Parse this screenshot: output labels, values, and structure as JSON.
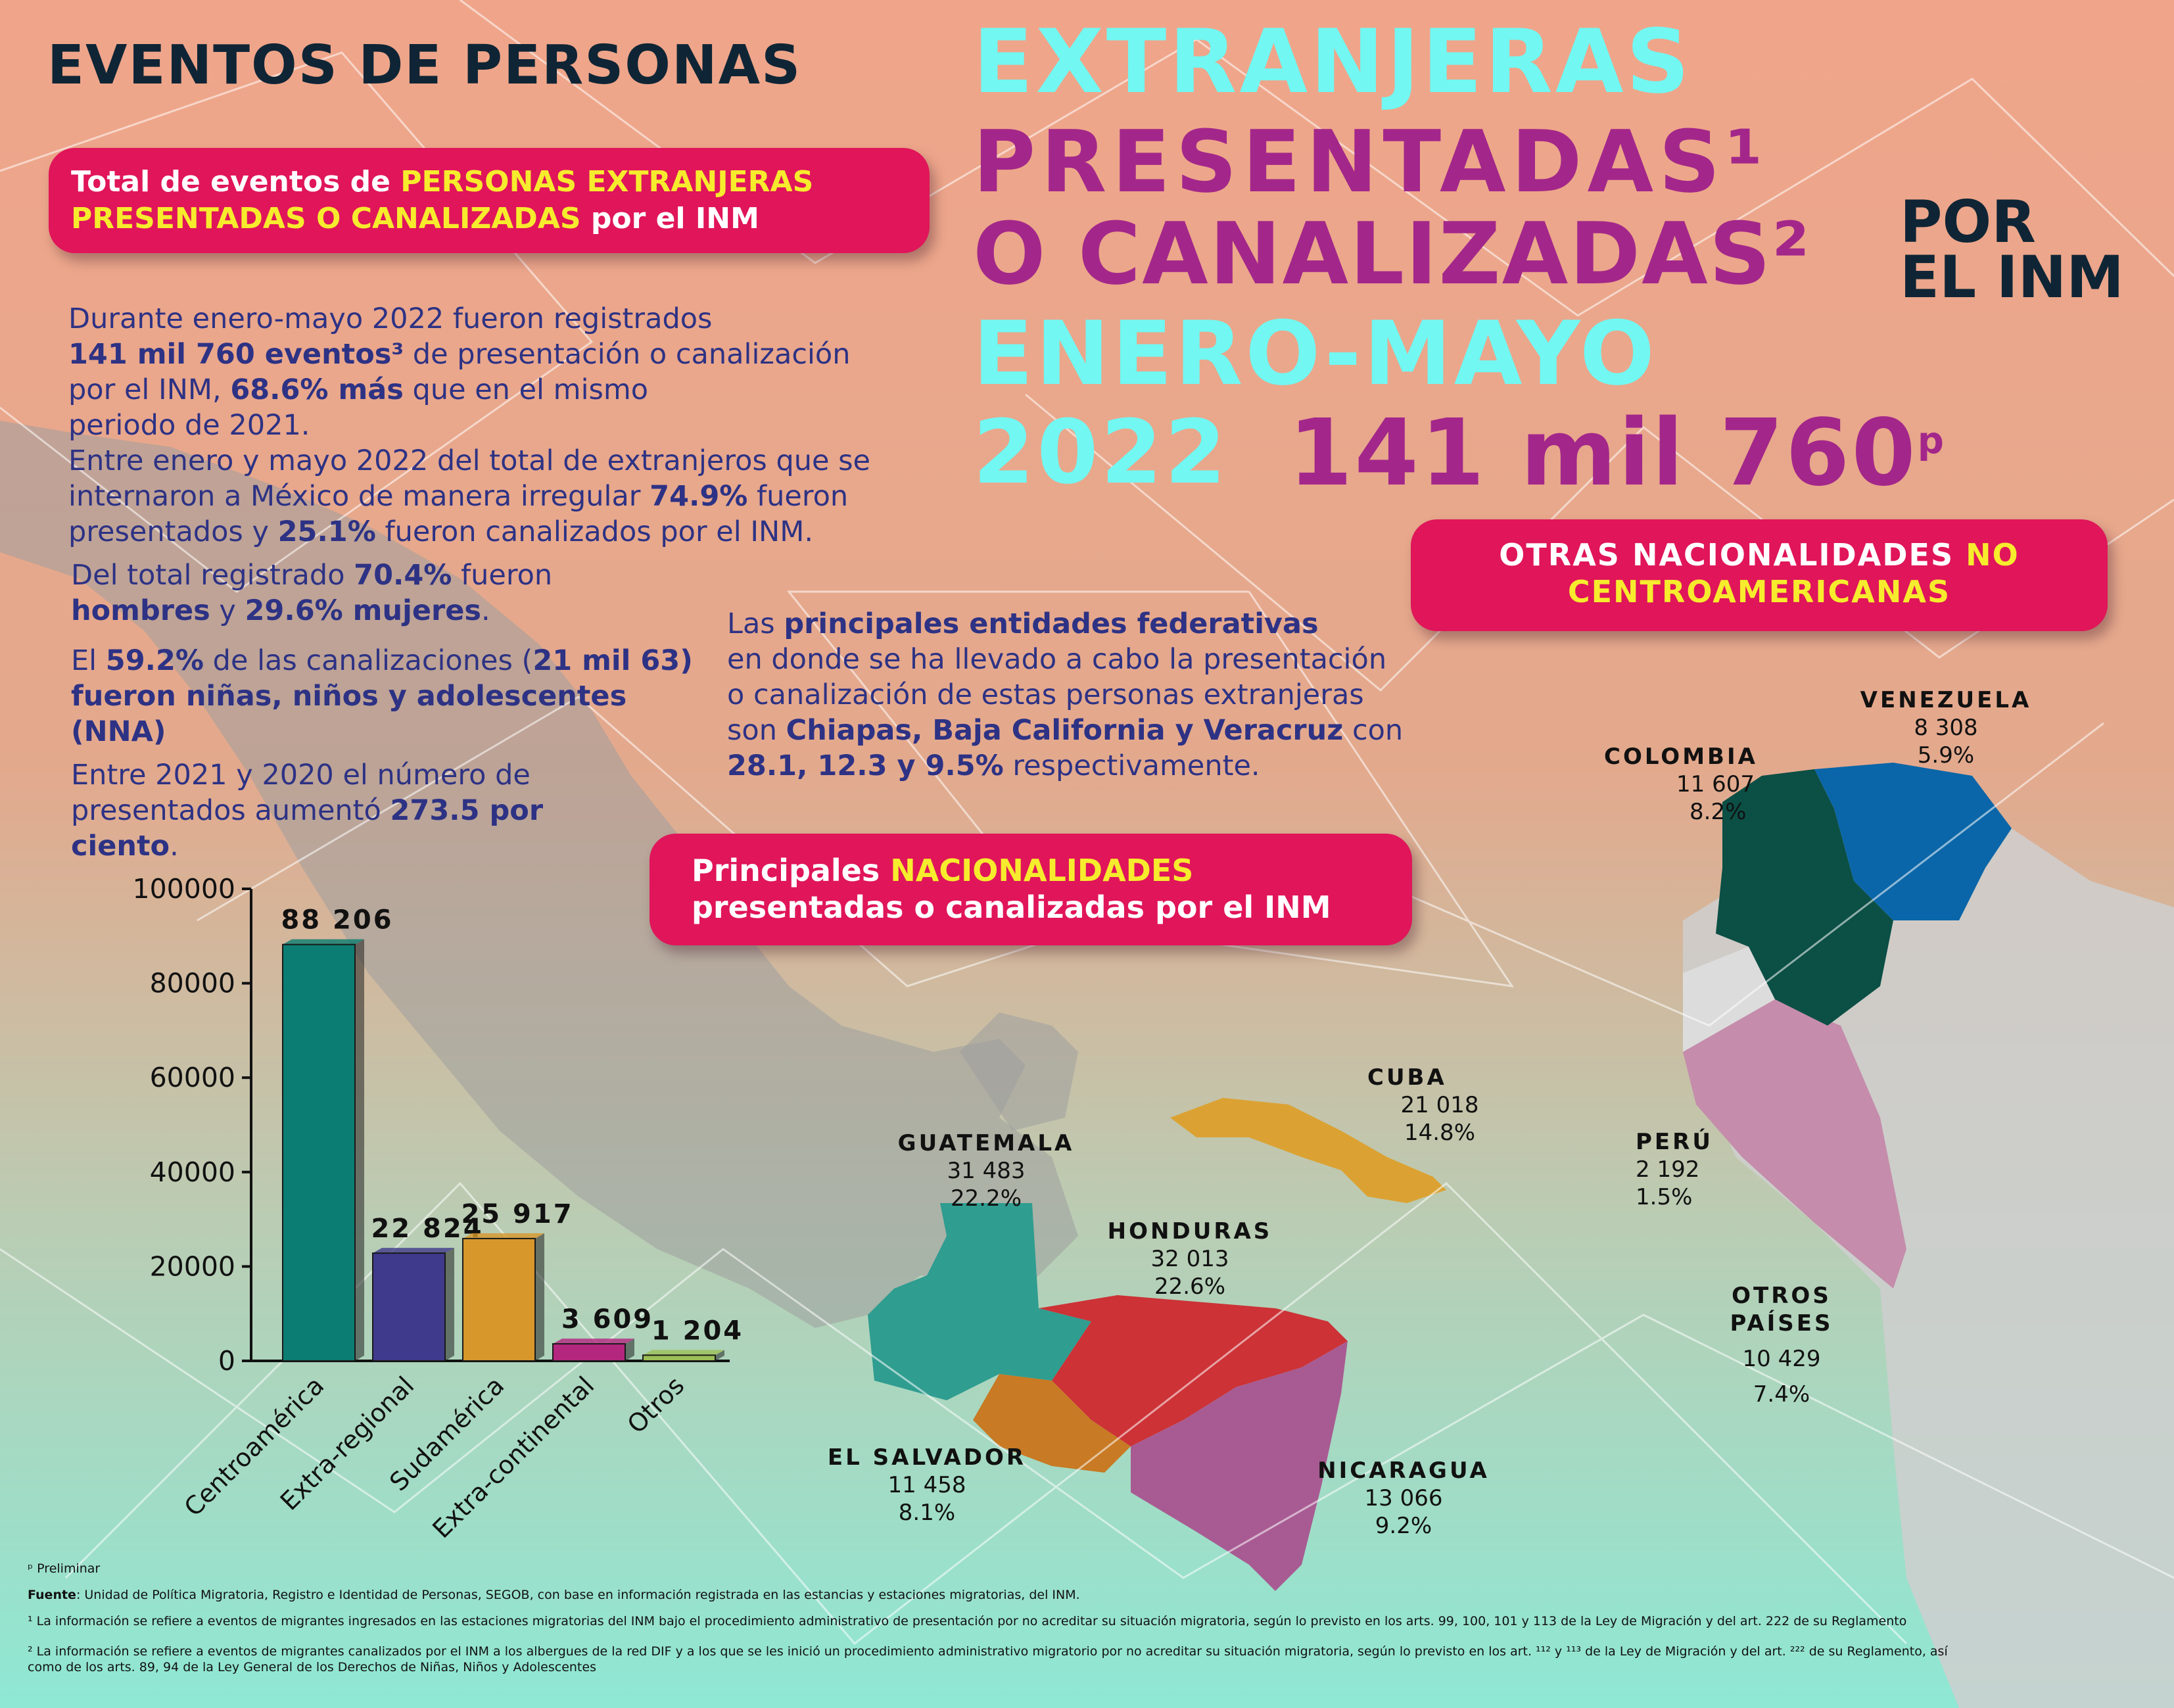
{
  "title": {
    "line1": "EVENTOS DE PERSONAS",
    "line2": "EXTRANJERAS",
    "line3": "PRESENTADAS¹",
    "line4": "O CANALIZADAS²",
    "por": "POR",
    "el_inm": "EL INM",
    "line5": "ENERO-MAYO",
    "line6": "2022",
    "total": "141 mil 760",
    "total_sup": "p"
  },
  "pill_total": {
    "part1": "Total de eventos de ",
    "part2": "PERSONAS EXTRANJERAS",
    "part3": "PRESENTADAS O CANALIZADAS",
    "part4": " por el INM"
  },
  "pill_otras": {
    "part1": "OTRAS NACIONALIDADES ",
    "part2": "NO",
    "part3": "CENTROAMERICANAS"
  },
  "pill_principales": {
    "part1": "Principales ",
    "part2": "NACIONALIDADES",
    "part3": "presentadas o canalizadas por el INM"
  },
  "paragraphs": {
    "p1a": "Durante enero-mayo 2022 fueron registrados",
    "p1b": "141 mil 760 eventos³",
    "p1c": " de presentación o canalización",
    "p1d": "por el INM, ",
    "p1e": "68.6% más",
    "p1f": " que en el mismo",
    "p1g": "periodo de 2021.",
    "p2a": "Entre enero y mayo 2022 del total de extranjeros que se",
    "p2b": "internaron a México de manera irregular ",
    "p2c": "74.9%",
    "p2d": " fueron",
    "p2e": "presentados y ",
    "p2f": "25.1%",
    "p2g": " fueron canalizados por el INM.",
    "p3a": "Del total registrado ",
    "p3b": "70.4%",
    "p3c": " fueron",
    "p3d": "hombres",
    "p3e": " y ",
    "p3f": "29.6% mujeres",
    "p3g": ".",
    "p4a": "El ",
    "p4b": "59.2%",
    "p4c": " de las canalizaciones (",
    "p4d": "21 mil 63)",
    "p4e": "fueron niñas, niños y adolescentes",
    "p4f": "(NNA)",
    "p5a": "Entre 2021 y 2020 el número de",
    "p5b": "presentados aumentó ",
    "p5c": "273.5 por",
    "p5d": "ciento",
    "p5e": ".",
    "p6a": "Las ",
    "p6b": "principales entidades federativas",
    "p6c": "en donde se ha llevado a cabo la presentación",
    "p6d": "o canalización de estas personas extranjeras",
    "p6e": "son ",
    "p6f": "Chiapas, Baja California y Veracruz",
    "p6g": " con",
    "p6h": "28.1, 12.3 y 9.5%",
    "p6i": " respectivamente."
  },
  "countries": {
    "venezuela": {
      "name": "VENEZUELA",
      "value": "8 308",
      "pct": "5.9%"
    },
    "colombia": {
      "name": "COLOMBIA",
      "value": "11 607",
      "pct": "8.2%"
    },
    "cuba": {
      "name": "CUBA",
      "value": "21 018",
      "pct": "14.8%"
    },
    "guatemala": {
      "name": "GUATEMALA",
      "value": "31 483",
      "pct": "22.2%"
    },
    "honduras": {
      "name": "HONDURAS",
      "value": "32 013",
      "pct": "22.6%"
    },
    "peru": {
      "name": "PERÚ",
      "value": "2 192",
      "pct": "1.5%"
    },
    "otros": {
      "name": "OTROS PAÍSES",
      "value": "10 429",
      "pct": "7.4%"
    },
    "el_salvador": {
      "name": "EL SALVADOR",
      "value": "11 458",
      "pct": "8.1%"
    },
    "nicaragua": {
      "name": "NICARAGUA",
      "value": "13 066",
      "pct": "9.2%"
    }
  },
  "chart_data": {
    "type": "bar",
    "categories": [
      "Centroamérica",
      "Extra-regional",
      "Sudamérica",
      "Extra-continental",
      "Otros"
    ],
    "values": [
      88206,
      22824,
      25917,
      3609,
      1204
    ],
    "value_labels": [
      "88 206",
      "22 824",
      "25 917",
      "3 609",
      "1 204"
    ],
    "ylim": [
      0,
      100000
    ],
    "yticks": [
      "100000",
      "80000",
      "60000",
      "40000",
      "20000",
      "0"
    ],
    "colors": [
      "#0b7d72",
      "#3f3a8c",
      "#d8972a",
      "#b4277f",
      "#9cbf55"
    ],
    "grid": false
  },
  "footnotes": {
    "prelim": "ᵖ Preliminar",
    "fuente_label": "Fuente",
    "fuente": ": Unidad de Política Migratoria, Registro e Identidad de Personas, SEGOB, con base en información registrada en las estancias y estaciones migratorias, del INM.",
    "n1": "¹ La información se refiere a eventos de migrantes ingresados en las estaciones migratorias del INM bajo el procedimiento administrativo de presentación por no acreditar su situación migratoria, según lo previsto en los arts. 99, 100, 101 y 113 de la Ley de Migración y del art. 222 de su Reglamento",
    "n2a": "² La información se refiere a eventos de migrantes canalizados por el INM a los albergues de la red DIF y a los que se les inició un procedimiento administrativo migratorio por no acreditar su situación migratoria, según lo previsto en los art. ¹¹² y ¹¹³ de la Ley de Migración y del art. ²²² de su Reglamento, así",
    "n2b": "como de los arts. 89, 94 de la Ley General de los Derechos de Niñas, Niños y Adolescentes"
  },
  "colors": {
    "pill": "#e0155a",
    "cyan": "#72f7f2",
    "magenta": "#a3278a",
    "navy_text": "#2d3284",
    "guatemala": "#2f9d90",
    "honduras": "#cc3236",
    "el_salvador": "#c87a24",
    "nicaragua": "#a85b92",
    "cuba": "#dba233",
    "colombia": "#0b4f45",
    "venezuela": "#0a66a8",
    "peru": "#c58cab"
  }
}
